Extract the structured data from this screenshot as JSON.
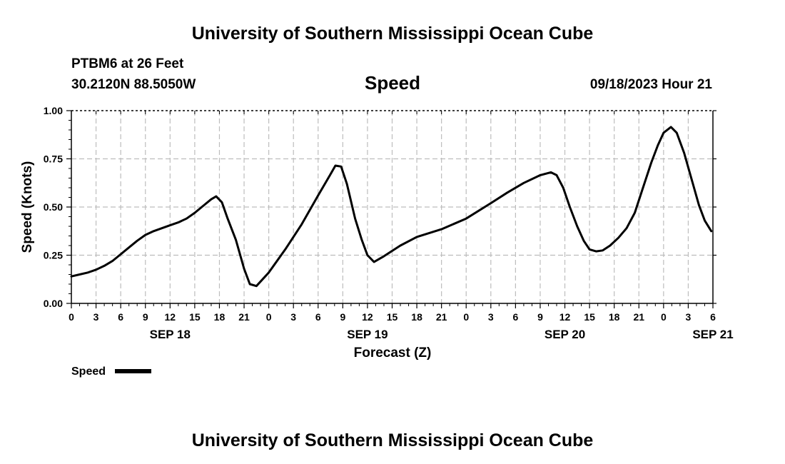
{
  "header": {
    "title": "University of Southern Mississippi Ocean Cube",
    "station": "PTBM6 at 26 Feet",
    "location": "30.2120N  88.5050W",
    "datetime": "09/18/2023 Hour 21",
    "footer_title": "University of Southern Mississippi Ocean Cube"
  },
  "chart_data": {
    "type": "line",
    "title": "Speed",
    "xlabel": "Forecast (Z)",
    "ylabel": "Speed (Knots)",
    "xlim": [
      0,
      78
    ],
    "ylim": [
      0,
      1
    ],
    "grid": true,
    "y_ticks": [
      "0.00",
      "0.25",
      "0.50",
      "0.75",
      "1.00"
    ],
    "x_ticks": [
      "0",
      "3",
      "6",
      "9",
      "12",
      "15",
      "18",
      "21",
      "0",
      "3",
      "6",
      "9",
      "12",
      "15",
      "18",
      "21",
      "0",
      "3",
      "6",
      "9",
      "12",
      "15",
      "18",
      "21",
      "0",
      "3",
      "6"
    ],
    "date_labels": [
      {
        "label": "SEP 18",
        "hour": 12
      },
      {
        "label": "SEP 19",
        "hour": 36
      },
      {
        "label": "SEP 20",
        "hour": 60
      },
      {
        "label": "SEP 21",
        "hour": 78
      }
    ],
    "legend": {
      "label": "Speed",
      "position": "bottom-left"
    },
    "series": [
      {
        "name": "Speed",
        "color": "#000000",
        "points": [
          [
            0,
            0.14
          ],
          [
            1,
            0.15
          ],
          [
            2,
            0.16
          ],
          [
            3,
            0.175
          ],
          [
            4,
            0.195
          ],
          [
            5,
            0.22
          ],
          [
            6,
            0.255
          ],
          [
            7,
            0.29
          ],
          [
            8,
            0.325
          ],
          [
            9,
            0.355
          ],
          [
            10,
            0.375
          ],
          [
            11,
            0.39
          ],
          [
            12,
            0.405
          ],
          [
            13,
            0.42
          ],
          [
            14,
            0.44
          ],
          [
            15,
            0.47
          ],
          [
            16,
            0.505
          ],
          [
            17,
            0.54
          ],
          [
            17.6,
            0.555
          ],
          [
            18.3,
            0.525
          ],
          [
            19,
            0.44
          ],
          [
            20,
            0.33
          ],
          [
            21,
            0.18
          ],
          [
            21.7,
            0.1
          ],
          [
            22.5,
            0.09
          ],
          [
            24,
            0.16
          ],
          [
            26,
            0.28
          ],
          [
            28,
            0.41
          ],
          [
            30,
            0.56
          ],
          [
            31.5,
            0.67
          ],
          [
            32.1,
            0.715
          ],
          [
            32.8,
            0.71
          ],
          [
            33.5,
            0.62
          ],
          [
            34.5,
            0.44
          ],
          [
            35.3,
            0.33
          ],
          [
            36,
            0.25
          ],
          [
            36.8,
            0.215
          ],
          [
            38,
            0.245
          ],
          [
            40,
            0.3
          ],
          [
            42,
            0.345
          ],
          [
            45,
            0.385
          ],
          [
            48,
            0.44
          ],
          [
            51,
            0.52
          ],
          [
            53,
            0.575
          ],
          [
            55,
            0.625
          ],
          [
            57,
            0.665
          ],
          [
            58.3,
            0.68
          ],
          [
            59,
            0.665
          ],
          [
            59.8,
            0.6
          ],
          [
            60.6,
            0.5
          ],
          [
            61.5,
            0.4
          ],
          [
            62.3,
            0.325
          ],
          [
            63,
            0.28
          ],
          [
            63.8,
            0.27
          ],
          [
            64.6,
            0.275
          ],
          [
            65.5,
            0.3
          ],
          [
            66.5,
            0.34
          ],
          [
            67.5,
            0.39
          ],
          [
            68.5,
            0.47
          ],
          [
            69.5,
            0.6
          ],
          [
            70.5,
            0.73
          ],
          [
            71.3,
            0.82
          ],
          [
            72,
            0.885
          ],
          [
            72.9,
            0.915
          ],
          [
            73.6,
            0.885
          ],
          [
            74.5,
            0.78
          ],
          [
            75.5,
            0.63
          ],
          [
            76.3,
            0.51
          ],
          [
            77,
            0.43
          ],
          [
            77.8,
            0.375
          ]
        ]
      }
    ]
  }
}
